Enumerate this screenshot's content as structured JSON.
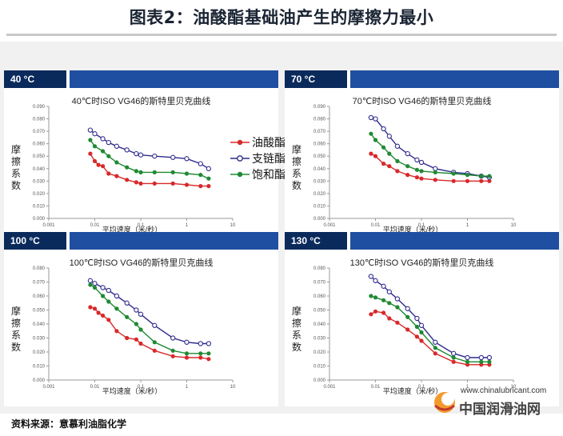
{
  "title": "图表2：油酸酯基础油产生的摩擦力最小",
  "source": "资料来源：意慕利油脂化学",
  "watermark": {
    "url": "www.chinalubricant.com",
    "name": "中国润滑油网"
  },
  "colors": {
    "oleate": "#d8292a",
    "branched": "#2e2a8c",
    "saturated": "#1e8a32",
    "tab": "#0b2a5c",
    "bar": "#1f4fa0"
  },
  "chart_data": [
    {
      "type": "line",
      "tab_label": "40 °C",
      "title": "40℃时ISO VG46的斯特里贝克曲线",
      "xlabel": "平均速度（米/秒）",
      "ylabel": "摩擦系数",
      "xscale": "log",
      "xlim": [
        0.001,
        10
      ],
      "ylim": [
        0,
        0.09
      ],
      "xticks": [
        "0.001",
        "0.01",
        "0.1",
        "1",
        "10"
      ],
      "yticks": [
        "0.000",
        "0.010",
        "0.020",
        "0.030",
        "0.040",
        "0.050",
        "0.060",
        "0.070",
        "0.080",
        "0.090"
      ],
      "legend": [
        "油酸酯",
        "支链酯",
        "饱和酯"
      ],
      "series": [
        {
          "name": "油酸酯",
          "x": [
            0.008,
            0.01,
            0.012,
            0.015,
            0.02,
            0.03,
            0.05,
            0.08,
            0.1,
            0.2,
            0.5,
            1,
            2,
            3
          ],
          "y": [
            0.052,
            0.046,
            0.043,
            0.042,
            0.036,
            0.034,
            0.031,
            0.029,
            0.028,
            0.028,
            0.028,
            0.027,
            0.026,
            0.026
          ]
        },
        {
          "name": "支链酯",
          "x": [
            0.008,
            0.01,
            0.015,
            0.02,
            0.03,
            0.05,
            0.08,
            0.1,
            0.2,
            0.5,
            1,
            2,
            3
          ],
          "y": [
            0.071,
            0.068,
            0.064,
            0.061,
            0.058,
            0.055,
            0.052,
            0.051,
            0.05,
            0.049,
            0.048,
            0.044,
            0.04
          ]
        },
        {
          "name": "饱和酯",
          "x": [
            0.008,
            0.01,
            0.015,
            0.02,
            0.03,
            0.05,
            0.08,
            0.1,
            0.2,
            0.5,
            1,
            2,
            3
          ],
          "y": [
            0.063,
            0.058,
            0.054,
            0.05,
            0.045,
            0.041,
            0.038,
            0.037,
            0.037,
            0.037,
            0.036,
            0.035,
            0.032
          ]
        }
      ]
    },
    {
      "type": "line",
      "tab_label": "70 °C",
      "title": "70℃时ISO VG46的斯特里贝克曲线",
      "xlabel": "平均速度（米/秒）",
      "ylabel": "摩擦系数",
      "xscale": "log",
      "xlim": [
        0.001,
        10
      ],
      "ylim": [
        0,
        0.09
      ],
      "xticks": [
        "0.001",
        "0.01",
        "0.1",
        "1",
        "10"
      ],
      "yticks": [
        "0.000",
        "0.010",
        "0.020",
        "0.030",
        "0.040",
        "0.050",
        "0.060",
        "0.070",
        "0.080",
        "0.090"
      ],
      "series": [
        {
          "name": "油酸酯",
          "x": [
            0.008,
            0.01,
            0.015,
            0.02,
            0.03,
            0.05,
            0.08,
            0.1,
            0.2,
            0.5,
            1,
            2,
            3
          ],
          "y": [
            0.052,
            0.05,
            0.044,
            0.042,
            0.038,
            0.035,
            0.033,
            0.032,
            0.031,
            0.03,
            0.03,
            0.03,
            0.03
          ]
        },
        {
          "name": "支链酯",
          "x": [
            0.008,
            0.01,
            0.015,
            0.02,
            0.03,
            0.05,
            0.08,
            0.1,
            0.2,
            0.5,
            1,
            2,
            3
          ],
          "y": [
            0.081,
            0.08,
            0.072,
            0.066,
            0.058,
            0.052,
            0.047,
            0.045,
            0.04,
            0.037,
            0.036,
            0.034,
            0.033
          ]
        },
        {
          "name": "饱和酯",
          "x": [
            0.008,
            0.01,
            0.015,
            0.02,
            0.03,
            0.05,
            0.08,
            0.1,
            0.2,
            0.5,
            1,
            2,
            3
          ],
          "y": [
            0.068,
            0.063,
            0.057,
            0.052,
            0.046,
            0.042,
            0.039,
            0.038,
            0.037,
            0.036,
            0.035,
            0.034,
            0.034
          ]
        }
      ]
    },
    {
      "type": "line",
      "tab_label": "100 °C",
      "title": "100℃时ISO VG46的斯特里贝克曲线",
      "xlabel": "平均速度（米/秒）",
      "ylabel": "摩擦系数",
      "xscale": "log",
      "xlim": [
        0.001,
        10
      ],
      "ylim": [
        0,
        0.08
      ],
      "xticks": [
        "0.001",
        "0.01",
        "0.1",
        "1",
        "10"
      ],
      "yticks": [
        "0.000",
        "0.010",
        "0.020",
        "0.030",
        "0.040",
        "0.050",
        "0.060",
        "0.070",
        "0.080"
      ],
      "series": [
        {
          "name": "油酸酯",
          "x": [
            0.008,
            0.01,
            0.012,
            0.015,
            0.02,
            0.03,
            0.05,
            0.08,
            0.1,
            0.2,
            0.5,
            1,
            2,
            3
          ],
          "y": [
            0.052,
            0.051,
            0.048,
            0.046,
            0.043,
            0.035,
            0.03,
            0.029,
            0.026,
            0.021,
            0.017,
            0.016,
            0.016,
            0.015
          ]
        },
        {
          "name": "支链酯",
          "x": [
            0.008,
            0.01,
            0.015,
            0.02,
            0.03,
            0.05,
            0.08,
            0.1,
            0.2,
            0.5,
            1,
            2,
            3
          ],
          "y": [
            0.071,
            0.069,
            0.066,
            0.064,
            0.06,
            0.055,
            0.05,
            0.047,
            0.039,
            0.03,
            0.027,
            0.026,
            0.026
          ]
        },
        {
          "name": "饱和酯",
          "x": [
            0.008,
            0.01,
            0.015,
            0.02,
            0.03,
            0.05,
            0.08,
            0.1,
            0.2,
            0.5,
            1,
            2,
            3
          ],
          "y": [
            0.068,
            0.066,
            0.06,
            0.056,
            0.051,
            0.045,
            0.04,
            0.036,
            0.027,
            0.021,
            0.019,
            0.019,
            0.019
          ]
        }
      ]
    },
    {
      "type": "line",
      "tab_label": "130 °C",
      "title": "130℃时ISO VG46的斯特里贝克曲线",
      "xlabel": "平均速度（米/秒）",
      "ylabel": "摩擦系数",
      "xscale": "log",
      "xlim": [
        0.001,
        10
      ],
      "ylim": [
        0,
        0.08
      ],
      "xticks": [
        "0.001",
        "0.01",
        "0.1",
        "1",
        "10"
      ],
      "yticks": [
        "0.000",
        "0.010",
        "0.020",
        "0.030",
        "0.040",
        "0.050",
        "0.060",
        "0.070",
        "0.080"
      ],
      "series": [
        {
          "name": "油酸酯",
          "x": [
            0.008,
            0.01,
            0.015,
            0.02,
            0.03,
            0.05,
            0.08,
            0.1,
            0.2,
            0.5,
            1,
            2,
            3
          ],
          "y": [
            0.047,
            0.049,
            0.048,
            0.044,
            0.041,
            0.036,
            0.031,
            0.028,
            0.019,
            0.013,
            0.011,
            0.011,
            0.011
          ]
        },
        {
          "name": "支链酯",
          "x": [
            0.008,
            0.01,
            0.015,
            0.02,
            0.03,
            0.05,
            0.08,
            0.1,
            0.2,
            0.5,
            1,
            2,
            3
          ],
          "y": [
            0.074,
            0.071,
            0.067,
            0.063,
            0.058,
            0.051,
            0.044,
            0.039,
            0.027,
            0.019,
            0.016,
            0.016,
            0.016
          ]
        },
        {
          "name": "饱和酯",
          "x": [
            0.008,
            0.01,
            0.015,
            0.02,
            0.03,
            0.05,
            0.08,
            0.1,
            0.2,
            0.5,
            1,
            2,
            3
          ],
          "y": [
            0.06,
            0.059,
            0.057,
            0.055,
            0.052,
            0.045,
            0.038,
            0.034,
            0.023,
            0.016,
            0.013,
            0.013,
            0.013
          ]
        }
      ]
    }
  ]
}
